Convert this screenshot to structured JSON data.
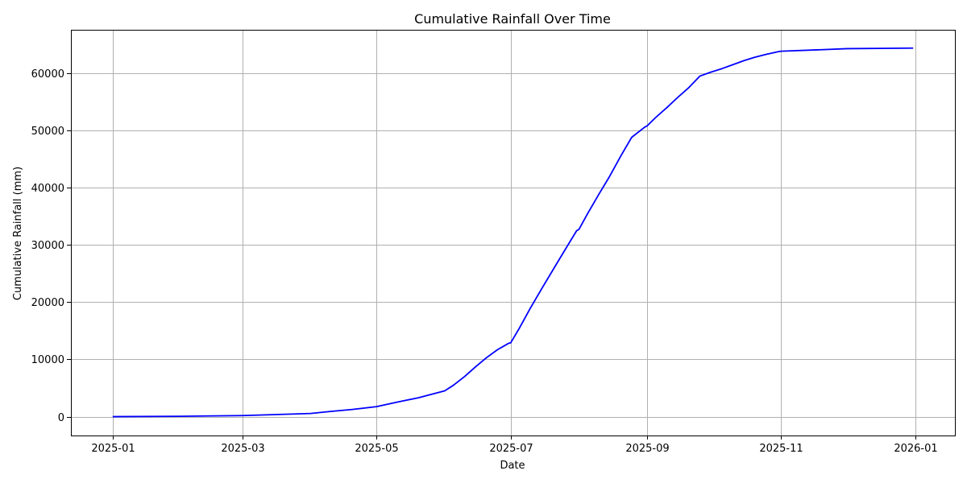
{
  "chart_data": {
    "type": "line",
    "title": "Cumulative Rainfall Over Time",
    "xlabel": "Date",
    "ylabel": "Cumulative Rainfall (mm)",
    "x_ticks": [
      "2025-01",
      "2025-03",
      "2025-05",
      "2025-07",
      "2025-09",
      "2025-11",
      "2026-01"
    ],
    "y_ticks": [
      "0",
      "10000",
      "20000",
      "30000",
      "40000",
      "50000",
      "60000"
    ],
    "xlim": [
      "2024-12-13",
      "2026-01-19"
    ],
    "ylim": [
      -3300,
      67600
    ],
    "grid": true,
    "color": "#0000ff",
    "x": [
      "2025-01-01",
      "2025-02-01",
      "2025-03-01",
      "2025-04-01",
      "2025-04-10",
      "2025-04-20",
      "2025-05-01",
      "2025-05-10",
      "2025-05-20",
      "2025-06-01",
      "2025-06-05",
      "2025-06-10",
      "2025-06-15",
      "2025-06-20",
      "2025-06-25",
      "2025-06-30",
      "2025-07-01",
      "2025-07-05",
      "2025-07-10",
      "2025-07-15",
      "2025-07-20",
      "2025-07-25",
      "2025-07-31",
      "2025-08-01",
      "2025-08-05",
      "2025-08-10",
      "2025-08-15",
      "2025-08-20",
      "2025-08-25",
      "2025-08-31",
      "2025-09-01",
      "2025-09-05",
      "2025-09-10",
      "2025-09-15",
      "2025-09-20",
      "2025-09-25",
      "2025-09-30",
      "2025-10-05",
      "2025-10-10",
      "2025-10-15",
      "2025-10-20",
      "2025-10-25",
      "2025-10-31",
      "2025-11-01",
      "2025-12-01",
      "2025-12-31"
    ],
    "series": [
      {
        "values": [
          0,
          60,
          180,
          550,
          900,
          1250,
          1750,
          2500,
          3300,
          4500,
          5500,
          7000,
          8700,
          10300,
          11700,
          12800,
          12900,
          15500,
          19000,
          22300,
          25500,
          28700,
          32500,
          32700,
          35500,
          38800,
          42000,
          45500,
          48800,
          50600,
          50800,
          52300,
          54000,
          55800,
          57500,
          59500,
          60200,
          60800,
          61500,
          62200,
          62800,
          63300,
          63800,
          63850,
          64300,
          64400
        ]
      }
    ]
  }
}
